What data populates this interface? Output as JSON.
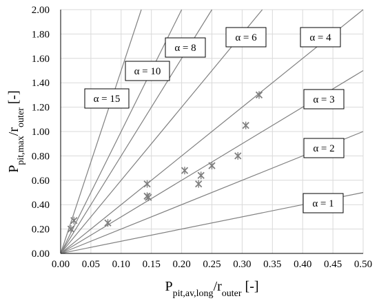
{
  "chart_data": {
    "type": "scatter",
    "title": "",
    "xlabel": {
      "main": "P",
      "sub": "pit,av,long",
      "slash": "/r",
      "sub2": "outer",
      "unit": " [-]"
    },
    "ylabel": {
      "main": "P",
      "sub": "pit,max",
      "slash": "/r",
      "sub2": "outer",
      "unit": " [-]"
    },
    "xlim": [
      0,
      0.5
    ],
    "ylim": [
      0,
      2.0
    ],
    "x_ticks": [
      "0.00",
      "0.05",
      "0.10",
      "0.15",
      "0.20",
      "0.25",
      "0.30",
      "0.35",
      "0.40",
      "0.45",
      "0.50"
    ],
    "y_ticks": [
      "0.00",
      "0.20",
      "0.40",
      "0.60",
      "0.80",
      "1.00",
      "1.20",
      "1.40",
      "1.60",
      "1.80",
      "2.00"
    ],
    "grid": true,
    "reference_lines": [
      {
        "alpha": 1,
        "label": "α = 1"
      },
      {
        "alpha": 2,
        "label": "α = 2"
      },
      {
        "alpha": 3,
        "label": "α = 3"
      },
      {
        "alpha": 4,
        "label": "α = 4"
      },
      {
        "alpha": 6,
        "label": "α = 6"
      },
      {
        "alpha": 8,
        "label": "α = 8"
      },
      {
        "alpha": 10,
        "label": "α = 10"
      },
      {
        "alpha": 15,
        "label": "α = 15"
      }
    ],
    "series": [
      {
        "marker": "asterisk",
        "points": [
          [
            0.017,
            0.2
          ],
          [
            0.022,
            0.27
          ],
          [
            0.078,
            0.25
          ],
          [
            0.143,
            0.57
          ],
          [
            0.143,
            0.47
          ],
          [
            0.145,
            0.46
          ],
          [
            0.205,
            0.68
          ],
          [
            0.228,
            0.57
          ],
          [
            0.232,
            0.64
          ],
          [
            0.25,
            0.72
          ],
          [
            0.293,
            0.8
          ],
          [
            0.306,
            1.05
          ],
          [
            0.328,
            1.3
          ]
        ]
      }
    ]
  }
}
